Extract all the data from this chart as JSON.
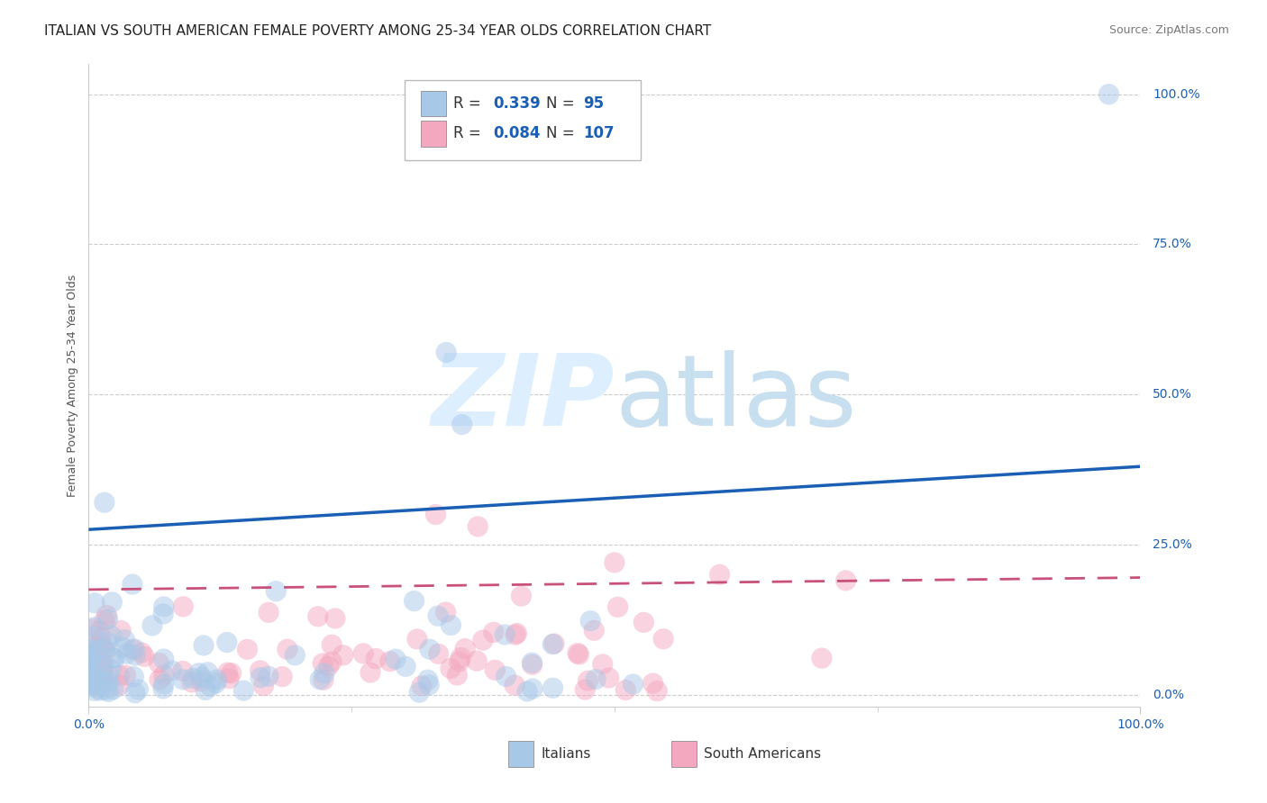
{
  "title": "ITALIAN VS SOUTH AMERICAN FEMALE POVERTY AMONG 25-34 YEAR OLDS CORRELATION CHART",
  "source": "Source: ZipAtlas.com",
  "ylabel": "Female Poverty Among 25-34 Year Olds",
  "xlim": [
    0,
    1
  ],
  "ylim": [
    -0.02,
    1.05
  ],
  "ytick_right_labels": [
    "100.0%",
    "75.0%",
    "50.0%",
    "25.0%",
    "0.0%"
  ],
  "ytick_right_values": [
    1.0,
    0.75,
    0.5,
    0.25,
    0.0
  ],
  "italian_R": 0.339,
  "italian_N": 95,
  "southam_R": 0.084,
  "southam_N": 107,
  "italian_color": "#a8c8e8",
  "southam_color": "#f4a8c0",
  "italian_line_color": "#1a5fb4",
  "southam_line_color": "#c8507a",
  "text_color": "#1a5fb4",
  "label_color": "#555555",
  "grid_color": "#cccccc",
  "background_color": "#ffffff",
  "watermark_color": "#ddeeff",
  "title_fontsize": 11,
  "source_fontsize": 9,
  "axis_label_fontsize": 9,
  "tick_fontsize": 10,
  "seed": 12345,
  "italian_line_x0": 0.0,
  "italian_line_y0": 0.275,
  "italian_line_x1": 1.0,
  "italian_line_y1": 0.38,
  "southam_line_x0": 0.0,
  "southam_line_y0": 0.175,
  "southam_line_x1": 1.0,
  "southam_line_y1": 0.195
}
